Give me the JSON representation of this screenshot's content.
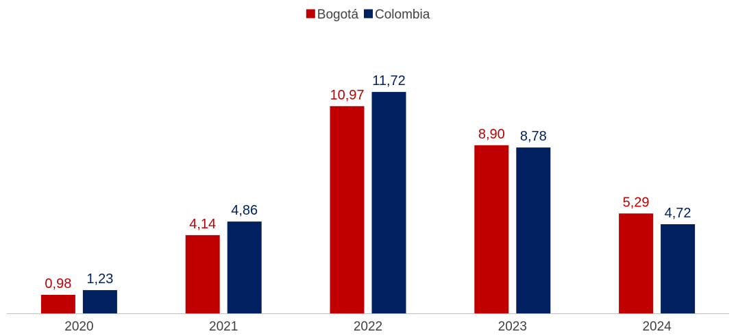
{
  "chart_data": {
    "type": "bar",
    "categories": [
      "2020",
      "2021",
      "2022",
      "2023",
      "2024"
    ],
    "series": [
      {
        "name": "Bogotá",
        "color": "#C00000",
        "values": [
          0.98,
          4.14,
          10.97,
          8.9,
          5.29
        ],
        "labels": [
          "0,98",
          "4,14",
          "10,97",
          "8,90",
          "5,29"
        ]
      },
      {
        "name": "Colombia",
        "color": "#002060",
        "values": [
          1.23,
          4.86,
          11.72,
          8.78,
          4.72
        ],
        "labels": [
          "1,23",
          "4,86",
          "11,72",
          "8,78",
          "4,72"
        ]
      }
    ],
    "title": "",
    "xlabel": "",
    "ylabel": "",
    "ylim": [
      0,
      12.5
    ],
    "grid": false,
    "legend_position": "top-center",
    "axis_color": "#BFBFBF",
    "tick_color": "#404040"
  }
}
